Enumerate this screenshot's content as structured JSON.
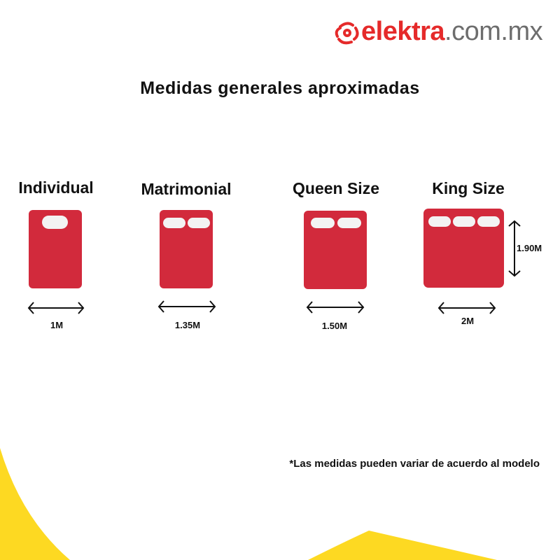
{
  "brand": {
    "name_red": "elektra",
    "name_gray": ".com.mx",
    "color_red": "#e52a2a",
    "color_gray": "#6d6d6d"
  },
  "title": "Medidas generales aproximadas",
  "beds": [
    {
      "name": "Individual",
      "width": "1M",
      "pillows": 1
    },
    {
      "name": "Matrimonial",
      "width": "1.35M",
      "pillows": 2
    },
    {
      "name": "Queen Size",
      "width": "1.50M",
      "pillows": 2
    },
    {
      "name": "King Size",
      "width": "2M",
      "pillows": 3,
      "length": "1.90M"
    }
  ],
  "note": "*Las medidas pueden variar de acuerdo al modelo",
  "colors": {
    "bed": "#d22a3c",
    "pillow": "#f3f3f3",
    "accent_yellow": "#fdd922"
  }
}
